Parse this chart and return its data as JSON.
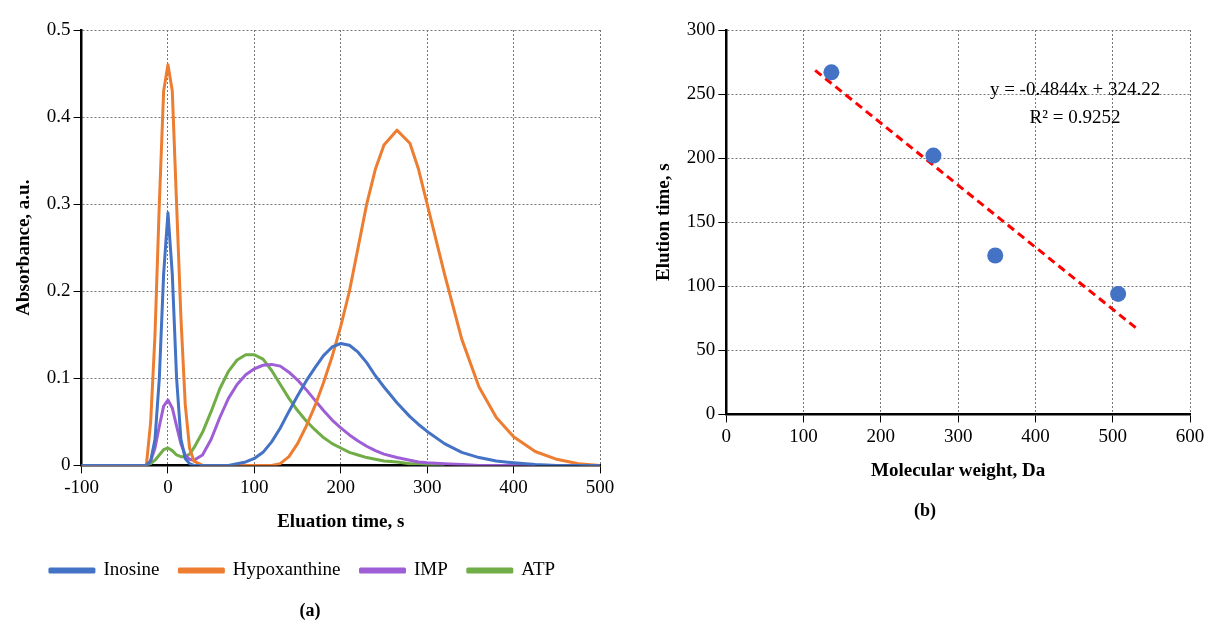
{
  "chart_data": [
    {
      "type": "line",
      "title": "(a)",
      "xlabel": "Eluation time, s",
      "ylabel": "Absorbance, a.u.",
      "xlim": [
        -100,
        500
      ],
      "xticks": [
        -100,
        0,
        100,
        200,
        300,
        400,
        500
      ],
      "ylim": [
        0,
        0.5
      ],
      "yticks": [
        0,
        0.1,
        0.2,
        0.3,
        0.4,
        0.5
      ],
      "grid": true,
      "legend": "bottom",
      "marker": "none",
      "line_style": "solid",
      "x": [
        -100,
        -25,
        -20,
        -15,
        -10,
        -5,
        0,
        5,
        10,
        15,
        20,
        25,
        30,
        40,
        50,
        60,
        70,
        80,
        90,
        100,
        110,
        120,
        130,
        140,
        150,
        160,
        170,
        180,
        190,
        200,
        210,
        220,
        230,
        240,
        250,
        265,
        280,
        290,
        300,
        320,
        340,
        360,
        380,
        400,
        425,
        450,
        475,
        500
      ],
      "series": [
        {
          "name": "Inosine",
          "color": "#4472c4",
          "values": [
            0,
            0,
            0.005,
            0.03,
            0.1,
            0.22,
            0.29,
            0.22,
            0.1,
            0.03,
            0.008,
            0.002,
            0,
            0,
            0,
            0,
            0,
            0.002,
            0.004,
            0.008,
            0.015,
            0.027,
            0.043,
            0.062,
            0.08,
            0.097,
            0.112,
            0.126,
            0.136,
            0.14,
            0.138,
            0.13,
            0.118,
            0.103,
            0.09,
            0.072,
            0.056,
            0.047,
            0.039,
            0.025,
            0.015,
            0.009,
            0.005,
            0.003,
            0.001,
            0,
            0,
            0
          ]
        },
        {
          "name": "Hypoxanthine",
          "color": "#ed7d31",
          "values": [
            0,
            0,
            0.05,
            0.15,
            0.3,
            0.43,
            0.46,
            0.43,
            0.3,
            0.17,
            0.07,
            0.02,
            0.005,
            0,
            0,
            0,
            0,
            0,
            0,
            0,
            0,
            0,
            0.002,
            0.01,
            0.025,
            0.045,
            0.068,
            0.095,
            0.125,
            0.16,
            0.2,
            0.25,
            0.3,
            0.34,
            0.368,
            0.385,
            0.37,
            0.34,
            0.3,
            0.22,
            0.145,
            0.09,
            0.055,
            0.033,
            0.016,
            0.007,
            0.002,
            0
          ]
        },
        {
          "name": "IMP",
          "color": "#9e5fd6",
          "values": [
            0,
            0,
            0.005,
            0.02,
            0.045,
            0.068,
            0.075,
            0.066,
            0.045,
            0.025,
            0.012,
            0.007,
            0.006,
            0.012,
            0.03,
            0.055,
            0.077,
            0.093,
            0.104,
            0.111,
            0.115,
            0.116,
            0.114,
            0.107,
            0.098,
            0.087,
            0.075,
            0.063,
            0.052,
            0.043,
            0.035,
            0.028,
            0.022,
            0.017,
            0.013,
            0.009,
            0.006,
            0.004,
            0.003,
            0.002,
            0.001,
            0,
            0,
            0,
            0,
            null,
            null,
            null
          ]
        },
        {
          "name": "ATP",
          "color": "#70ad47",
          "values": [
            0,
            0,
            0.002,
            0.006,
            0.012,
            0.018,
            0.02,
            0.017,
            0.012,
            0.01,
            0.01,
            0.013,
            0.02,
            0.038,
            0.062,
            0.088,
            0.108,
            0.121,
            0.127,
            0.127,
            0.122,
            0.109,
            0.093,
            0.077,
            0.063,
            0.051,
            0.041,
            0.032,
            0.025,
            0.02,
            0.015,
            0.012,
            0.009,
            0.007,
            0.005,
            0.004,
            0.002,
            0.002,
            0.001,
            0.001,
            null,
            null,
            null,
            null,
            null,
            null,
            null,
            null
          ]
        }
      ]
    },
    {
      "type": "scatter",
      "title": "(b)",
      "xlabel": "Molecular weight, Da",
      "ylabel": "Elution time, s",
      "xlim": [
        0,
        600
      ],
      "xticks": [
        0,
        100,
        200,
        300,
        400,
        500,
        600
      ],
      "ylim": [
        0,
        300
      ],
      "yticks": [
        0,
        50,
        100,
        150,
        200,
        250,
        300
      ],
      "grid": true,
      "annotations": [
        "y = -0.4844x + 324.22",
        "R² = 0.9252"
      ],
      "series": [
        {
          "color": "#4472c4",
          "marker": "circle",
          "x": [
            136,
            268,
            348,
            507
          ],
          "values": [
            267,
            202,
            124,
            94
          ]
        },
        {
          "type": "line",
          "color": "#ff0000",
          "line_style": "dashed",
          "marker": "none",
          "x": [
            115,
            530
          ],
          "values": [
            268.5,
            67.5
          ]
        }
      ]
    }
  ]
}
